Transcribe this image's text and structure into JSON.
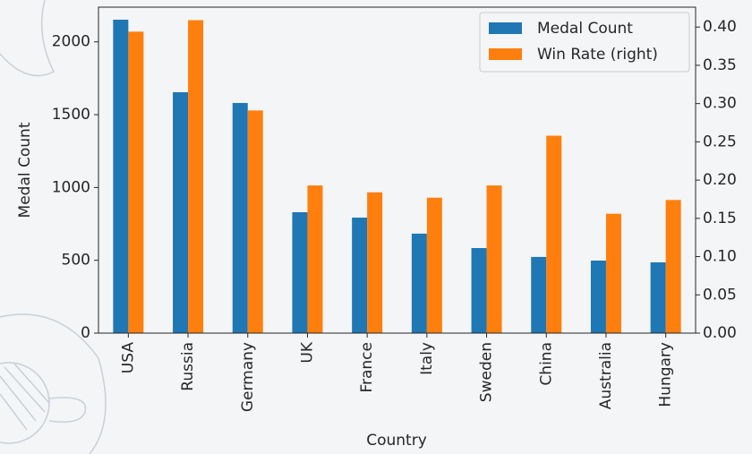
{
  "chart_data": {
    "type": "bar",
    "categories": [
      "USA",
      "Russia",
      "Germany",
      "UK",
      "France",
      "Italy",
      "Sweden",
      "China",
      "Australia",
      "Hungary"
    ],
    "series": [
      {
        "name": "Medal Count",
        "color": "#1f77b4",
        "values": [
          2152,
          1654,
          1580,
          830,
          793,
          683,
          584,
          523,
          498,
          486
        ]
      },
      {
        "name": "Win Rate (right)",
        "color": "#ff7f0e",
        "axis": "y2",
        "values": [
          0.394,
          0.409,
          0.291,
          0.193,
          0.184,
          0.177,
          0.193,
          0.258,
          0.156,
          0.174
        ]
      }
    ],
    "ylabel": "Medal Count",
    "xlabel": "Country",
    "ylim": [
      0,
      2238
    ],
    "yticks": [
      0,
      500,
      1000,
      1500,
      2000
    ],
    "y2lim": [
      0,
      0.426
    ],
    "y2ticks": [
      {
        "value": 0,
        "label": "0.00"
      },
      {
        "value": 0.05,
        "label": "0.05"
      },
      {
        "value": 0.1,
        "label": "0.10"
      },
      {
        "value": 0.15,
        "label": "0.15"
      },
      {
        "value": 0.2,
        "label": "0.20"
      },
      {
        "value": 0.25,
        "label": "0.25"
      },
      {
        "value": 0.3,
        "label": "0.30"
      },
      {
        "value": 0.35,
        "label": "0.35"
      },
      {
        "value": 0.4,
        "label": "0.40"
      }
    ],
    "legend": "upper right"
  }
}
